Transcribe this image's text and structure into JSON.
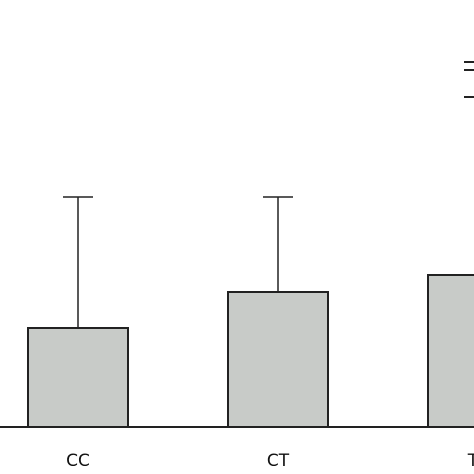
{
  "chart_data": {
    "type": "bar",
    "categories": [
      "CC",
      "CT",
      "TT"
    ],
    "values": [
      99,
      135,
      152
    ],
    "errors": [
      131,
      95,
      null
    ],
    "color": "#c8cbc8",
    "ylim": [
      0,
      427
    ]
  }
}
